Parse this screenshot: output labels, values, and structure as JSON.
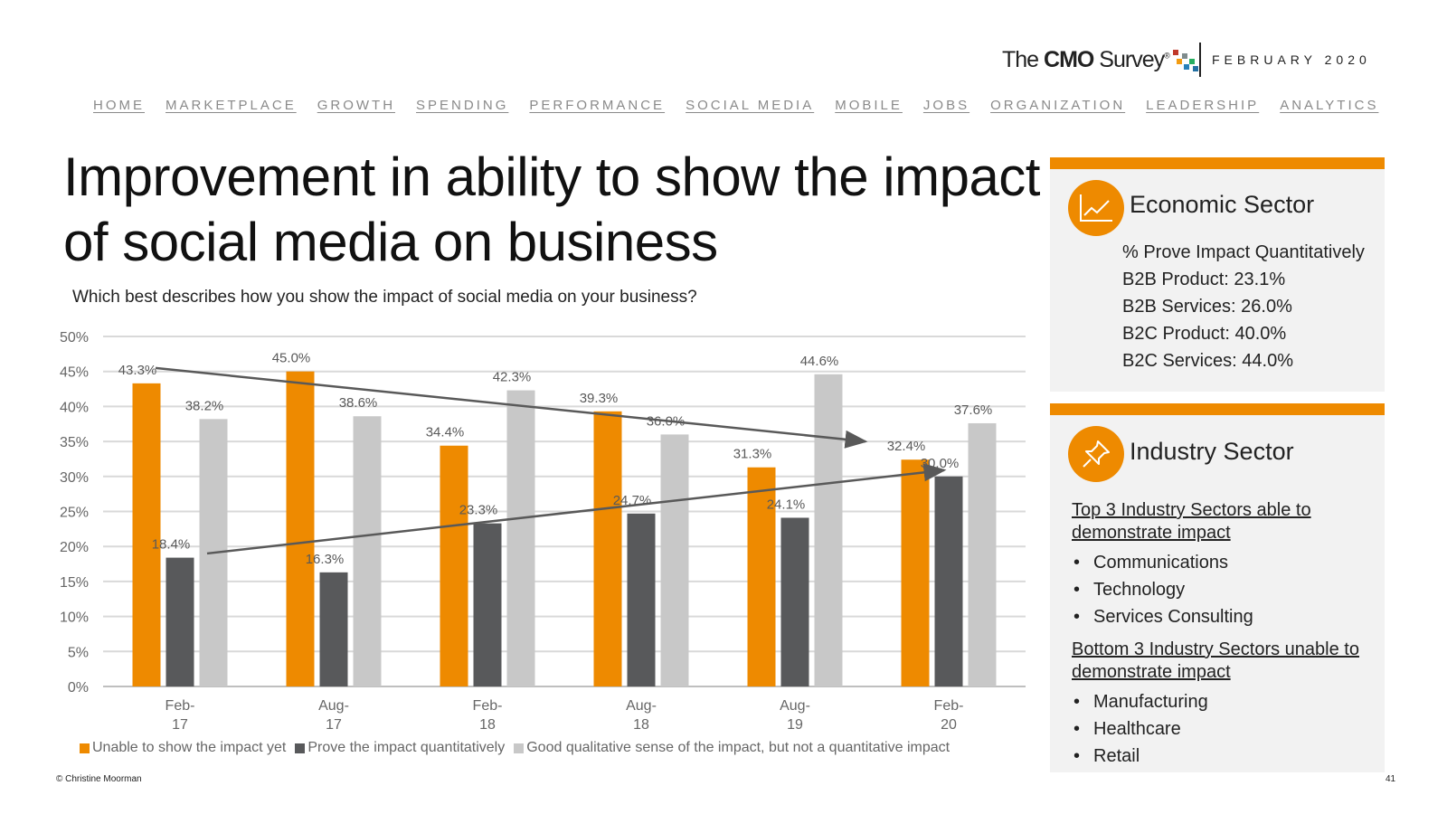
{
  "header": {
    "logo_pre": "The ",
    "logo_bold": "CMO",
    "logo_post": " Survey",
    "logo_reg": "®",
    "date": "FEBRUARY 2020"
  },
  "nav": [
    "HOME",
    "MARKETPLACE",
    "GROWTH",
    "SPENDING",
    "PERFORMANCE",
    "SOCIAL MEDIA",
    "MOBILE",
    "JOBS",
    "ORGANIZATION",
    "LEADERSHIP",
    "ANALYTICS"
  ],
  "title": "Improvement in ability to show the impact of social media on business",
  "question": "Which best describes how you show the impact of social media on your business?",
  "colors": {
    "orange": "#ee8a00",
    "dark": "#58595b",
    "light": "#c8c8c8",
    "trend": "#595959"
  },
  "chart_data": {
    "type": "bar",
    "categories": [
      [
        "Feb-",
        "17"
      ],
      [
        "Aug-",
        "17"
      ],
      [
        "Feb-",
        "18"
      ],
      [
        "Aug-",
        "18"
      ],
      [
        "Aug-",
        "19"
      ],
      [
        "Feb-",
        "20"
      ]
    ],
    "series": [
      {
        "name": "Unable to show the impact yet",
        "values": [
          43.3,
          45.0,
          34.4,
          39.3,
          31.3,
          32.4
        ],
        "labels": [
          "43.3%",
          "45.0%",
          "34.4%",
          "39.3%",
          "31.3%",
          "32.4%"
        ]
      },
      {
        "name": "Prove the impact quantitatively",
        "values": [
          18.4,
          16.3,
          23.3,
          24.7,
          24.1,
          30.0
        ],
        "labels": [
          "18.4%",
          "16.3%",
          "23.3%",
          "24.7%",
          "24.1%",
          "30.0%"
        ]
      },
      {
        "name": "Good qualitative sense of the impact, but not a quantitative impact",
        "values": [
          38.2,
          38.6,
          42.3,
          36.0,
          44.6,
          37.6
        ],
        "labels": [
          "38.2%",
          "38.6%",
          "42.3%",
          "36.0%",
          "44.6%",
          "37.6%"
        ]
      }
    ],
    "y_ticks": [
      "0%",
      "5%",
      "10%",
      "15%",
      "20%",
      "25%",
      "30%",
      "35%",
      "40%",
      "45%",
      "50%"
    ],
    "ylim": [
      0,
      50
    ],
    "trendlines": [
      {
        "series": "Unable to show the impact yet",
        "from": 45.5,
        "to": 35.0
      },
      {
        "series": "Prove the impact quantitatively",
        "from": 19.0,
        "to": 30.9
      }
    ],
    "legend_position": "bottom"
  },
  "economic": {
    "heading": "Economic Sector",
    "lines": [
      "% Prove Impact Quantitatively",
      "B2B Product: 23.1%",
      "B2B Services: 26.0%",
      "B2C Product: 40.0%",
      "B2C Services: 44.0%"
    ]
  },
  "industry": {
    "heading": "Industry Sector",
    "top_heading": "Top 3 Industry Sectors able to demonstrate impact",
    "top": [
      "Communications",
      "Technology",
      "Services Consulting"
    ],
    "bottom_heading": "Bottom 3 Industry Sectors unable to demonstrate impact",
    "bottom": [
      "Manufacturing",
      "Healthcare",
      "Retail"
    ]
  },
  "footer": {
    "copyright": "© Christine Moorman",
    "page": "41"
  }
}
